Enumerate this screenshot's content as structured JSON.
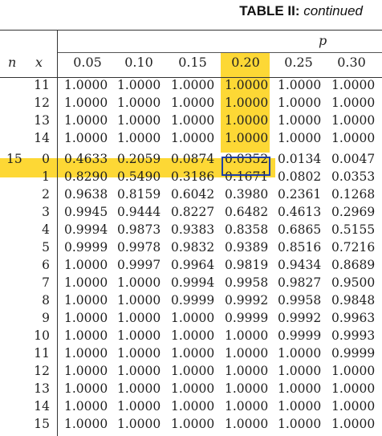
{
  "title": {
    "bold": "TABLE II:",
    "italic": "continued"
  },
  "header": {
    "p_label": "p",
    "n_label": "n",
    "x_label": "x",
    "columns": [
      "0.05",
      "0.10",
      "0.15",
      "0.20",
      "0.25",
      "0.30"
    ]
  },
  "colors": {
    "highlight": "#fdd835",
    "selection_border": "#1f3fa8"
  },
  "rows": [
    {
      "n": "",
      "x": "11",
      "values": [
        "1.0000",
        "1.0000",
        "1.0000",
        "1.0000",
        "1.0000",
        "1.0000"
      ]
    },
    {
      "n": "",
      "x": "12",
      "values": [
        "1.0000",
        "1.0000",
        "1.0000",
        "1.0000",
        "1.0000",
        "1.0000"
      ]
    },
    {
      "n": "",
      "x": "13",
      "values": [
        "1.0000",
        "1.0000",
        "1.0000",
        "1.0000",
        "1.0000",
        "1.0000"
      ]
    },
    {
      "n": "",
      "x": "14",
      "values": [
        "1.0000",
        "1.0000",
        "1.0000",
        "1.0000",
        "1.0000",
        "1.0000"
      ]
    },
    {
      "n": "15",
      "x": "0",
      "values": [
        "0.4633",
        "0.2059",
        "0.0874",
        "0.0352",
        "0.0134",
        "0.0047"
      ]
    },
    {
      "n": "",
      "x": "1",
      "values": [
        "0.8290",
        "0.5490",
        "0.3186",
        "0.1671",
        "0.0802",
        "0.0353"
      ]
    },
    {
      "n": "",
      "x": "2",
      "values": [
        "0.9638",
        "0.8159",
        "0.6042",
        "0.3980",
        "0.2361",
        "0.1268"
      ]
    },
    {
      "n": "",
      "x": "3",
      "values": [
        "0.9945",
        "0.9444",
        "0.8227",
        "0.6482",
        "0.4613",
        "0.2969"
      ]
    },
    {
      "n": "",
      "x": "4",
      "values": [
        "0.9994",
        "0.9873",
        "0.9383",
        "0.8358",
        "0.6865",
        "0.5155"
      ]
    },
    {
      "n": "",
      "x": "5",
      "values": [
        "0.9999",
        "0.9978",
        "0.9832",
        "0.9389",
        "0.8516",
        "0.7216"
      ]
    },
    {
      "n": "",
      "x": "6",
      "values": [
        "1.0000",
        "0.9997",
        "0.9964",
        "0.9819",
        "0.9434",
        "0.8689"
      ]
    },
    {
      "n": "",
      "x": "7",
      "values": [
        "1.0000",
        "1.0000",
        "0.9994",
        "0.9958",
        "0.9827",
        "0.9500"
      ]
    },
    {
      "n": "",
      "x": "8",
      "values": [
        "1.0000",
        "1.0000",
        "0.9999",
        "0.9992",
        "0.9958",
        "0.9848"
      ]
    },
    {
      "n": "",
      "x": "9",
      "values": [
        "1.0000",
        "1.0000",
        "1.0000",
        "0.9999",
        "0.9992",
        "0.9963"
      ]
    },
    {
      "n": "",
      "x": "10",
      "values": [
        "1.0000",
        "1.0000",
        "1.0000",
        "1.0000",
        "0.9999",
        "0.9993"
      ]
    },
    {
      "n": "",
      "x": "11",
      "values": [
        "1.0000",
        "1.0000",
        "1.0000",
        "1.0000",
        "1.0000",
        "0.9999"
      ]
    },
    {
      "n": "",
      "x": "12",
      "values": [
        "1.0000",
        "1.0000",
        "1.0000",
        "1.0000",
        "1.0000",
        "1.0000"
      ]
    },
    {
      "n": "",
      "x": "13",
      "values": [
        "1.0000",
        "1.0000",
        "1.0000",
        "1.0000",
        "1.0000",
        "1.0000"
      ]
    },
    {
      "n": "",
      "x": "14",
      "values": [
        "1.0000",
        "1.0000",
        "1.0000",
        "1.0000",
        "1.0000",
        "1.0000"
      ]
    },
    {
      "n": "",
      "x": "15",
      "values": [
        "1.0000",
        "1.0000",
        "1.0000",
        "1.0000",
        "1.0000",
        "1.0000"
      ]
    }
  ]
}
